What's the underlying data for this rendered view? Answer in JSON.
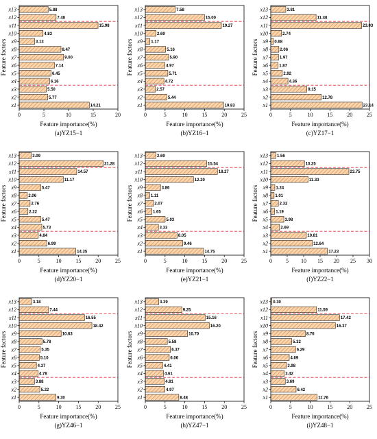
{
  "figure": {
    "colors": {
      "bar_fill": "#f9d6b0",
      "bar_hatch": "#d8823a",
      "bar_edge": "#222222",
      "dash": "#e0323c"
    }
  },
  "chart_data": [
    {
      "type": "bar",
      "orientation": "horizontal",
      "panel": "(a)YZ15−1",
      "xlabel": "Feature importance(%)",
      "ylabel": "Feature factors",
      "xlim": [
        0,
        20
      ],
      "xticks": [
        0,
        5,
        10,
        15,
        20
      ],
      "categories": [
        "x1",
        "x2",
        "x3",
        "x4",
        "x5",
        "x6",
        "x7",
        "x8",
        "x9",
        "x10",
        "x11",
        "x12",
        "x13"
      ],
      "values": [
        14.21,
        5.77,
        5.5,
        6.16,
        6.45,
        7.14,
        9.0,
        8.47,
        3.13,
        4.83,
        15.98,
        7.48,
        5.88
      ],
      "labels": [
        "14.21",
        "5.77",
        "5.50",
        "6.16",
        "6.45",
        "7.14",
        "9.00",
        "8.47",
        "3.13",
        "4.83",
        "15.98",
        "7.48",
        "5.88"
      ],
      "dashed_lines_after": [
        "x3",
        "x11"
      ]
    },
    {
      "type": "bar",
      "orientation": "horizontal",
      "panel": "(b)YZ16−1",
      "xlabel": "Feature importance(%)",
      "ylabel": "Feature factors",
      "xlim": [
        0,
        25
      ],
      "xticks": [
        0,
        5,
        10,
        15,
        20,
        25
      ],
      "categories": [
        "x1",
        "x2",
        "x3",
        "x4",
        "x5",
        "x6",
        "x7",
        "x8",
        "x9",
        "x10",
        "x11",
        "x12",
        "x13"
      ],
      "values": [
        19.83,
        5.44,
        2.57,
        4.72,
        5.71,
        4.97,
        5.9,
        5.16,
        1.17,
        2.69,
        19.27,
        15.0,
        7.58
      ],
      "labels": [
        "19.83",
        "5.44",
        "2.57",
        "4.72",
        "5.71",
        "4.97",
        "5.90",
        "5.16",
        "1.17",
        "2.69",
        "19.27",
        "15.00",
        "7.58"
      ],
      "dashed_lines_after": [
        "x3",
        "x11"
      ]
    },
    {
      "type": "bar",
      "orientation": "horizontal",
      "panel": "(c)YZ17−1",
      "xlabel": "Feature importance(%)",
      "ylabel": "Feature factors",
      "xlim": [
        0,
        25
      ],
      "xticks": [
        0,
        5,
        10,
        15,
        20,
        25
      ],
      "categories": [
        "x1",
        "x2",
        "x3",
        "x4",
        "x5",
        "x6",
        "x7",
        "x8",
        "x9",
        "x10",
        "x11",
        "x12",
        "x13"
      ],
      "values": [
        23.14,
        12.78,
        9.15,
        4.36,
        2.92,
        1.87,
        1.97,
        2.06,
        0.68,
        2.74,
        23.03,
        11.48,
        3.81
      ],
      "labels": [
        "23.14",
        "12.78",
        "9.15",
        "4.36",
        "2.92",
        "1.87",
        "1.97",
        "2.06",
        "0.68",
        "2.74",
        "23.03",
        "11.48",
        "3.81"
      ],
      "dashed_lines_after": [
        "x3",
        "x11"
      ]
    },
    {
      "type": "bar",
      "orientation": "horizontal",
      "panel": "(d)YZ20−1",
      "xlabel": "Feature importance(%)",
      "ylabel": "Feature factors",
      "xlim": [
        0,
        25
      ],
      "xticks": [
        0,
        5,
        10,
        15,
        20,
        25
      ],
      "categories": [
        "x1",
        "x2",
        "x3",
        "x4",
        "x5",
        "x6",
        "x7",
        "x8",
        "x9",
        "x10",
        "x11",
        "x12",
        "x13"
      ],
      "values": [
        14.35,
        6.99,
        4.84,
        5.73,
        5.47,
        2.22,
        2.76,
        2.06,
        5.47,
        11.17,
        14.57,
        21.28,
        3.09
      ],
      "labels": [
        "14.35",
        "6.99",
        "4.84",
        "5.73",
        "5.47",
        "2.22",
        "2.76",
        "2.06",
        "5.47",
        "11.17",
        "14.57",
        "21.28",
        "3.09"
      ],
      "dashed_lines_after": [
        "x3",
        "x11"
      ]
    },
    {
      "type": "bar",
      "orientation": "horizontal",
      "panel": "(e)YZ21−1",
      "xlabel": "Feature importance(%)",
      "ylabel": "Feature factors",
      "xlim": [
        0,
        25
      ],
      "xticks": [
        0,
        5,
        10,
        15,
        20,
        25
      ],
      "categories": [
        "x1",
        "x2",
        "x3",
        "x4",
        "x5",
        "x6",
        "x7",
        "x8",
        "x9",
        "x10",
        "x11",
        "x12",
        "x13"
      ],
      "values": [
        14.75,
        9.46,
        8.05,
        3.33,
        5.03,
        1.65,
        2.07,
        1.11,
        3.86,
        12.2,
        18.27,
        15.54,
        2.69
      ],
      "labels": [
        "14.75",
        "9.46",
        "8.05",
        "3.33",
        "5.03",
        "1.65",
        "2.07",
        "1.11",
        "3.86",
        "12.20",
        "18.27",
        "15.54",
        "2.69"
      ],
      "dashed_lines_after": [
        "x3",
        "x11"
      ]
    },
    {
      "type": "bar",
      "orientation": "horizontal",
      "panel": "(f)YZ22−1",
      "xlabel": "Feature importance(%)",
      "ylabel": "Feature factors",
      "xlim": [
        0,
        30
      ],
      "xticks": [
        0,
        5,
        10,
        15,
        20,
        25,
        30
      ],
      "categories": [
        "x1",
        "x2",
        "x3",
        "x4",
        "x5",
        "x6",
        "x7",
        "x8",
        "x9",
        "x10",
        "x11",
        "x12",
        "x13"
      ],
      "values": [
        17.23,
        12.64,
        10.81,
        2.69,
        3.98,
        1.19,
        2.32,
        1.01,
        1.24,
        11.33,
        23.75,
        10.25,
        1.56
      ],
      "labels": [
        "17.23",
        "12.64",
        "10.81",
        "2.69",
        "3.98",
        "1.19",
        "2.32",
        "1.01",
        "1.24",
        "11.33",
        "23.75",
        "10.25",
        "1.56"
      ],
      "dashed_lines_after": [
        "x3",
        "x11"
      ]
    },
    {
      "type": "bar",
      "orientation": "horizontal",
      "panel": "(g)YZ46−1",
      "xlabel": "Feature importance(%)",
      "ylabel": "Feature factors",
      "xlim": [
        0,
        25
      ],
      "xticks": [
        0,
        5,
        10,
        15,
        20,
        25
      ],
      "categories": [
        "x1",
        "x2",
        "x3",
        "x4",
        "x5",
        "x6",
        "x7",
        "x8",
        "x9",
        "x10",
        "x11",
        "x12",
        "x13"
      ],
      "values": [
        9.3,
        5.22,
        3.88,
        4.78,
        4.37,
        5.1,
        5.35,
        5.78,
        10.63,
        18.42,
        16.55,
        7.44,
        3.18
      ],
      "labels": [
        "9.30",
        "5.22",
        "3.88",
        "4.78",
        "4.37",
        "5.10",
        "5.35",
        "5.78",
        "10.63",
        "18.42",
        "16.55",
        "7.44",
        "3.18"
      ],
      "dashed_lines_after": [
        "x3",
        "x11"
      ]
    },
    {
      "type": "bar",
      "orientation": "horizontal",
      "panel": "(h)YZ47−1",
      "xlabel": "Feature importance(%)",
      "ylabel": "Feature factors",
      "xlim": [
        0,
        25
      ],
      "xticks": [
        0,
        5,
        10,
        15,
        20,
        25
      ],
      "categories": [
        "x1",
        "x2",
        "x3",
        "x4",
        "x5",
        "x6",
        "x7",
        "x8",
        "x9",
        "x10",
        "x11",
        "x12",
        "x13"
      ],
      "values": [
        8.48,
        4.97,
        4.81,
        4.61,
        4.41,
        6.06,
        6.37,
        5.58,
        10.7,
        16.2,
        15.16,
        9.25,
        3.39
      ],
      "labels": [
        "8.48",
        "4.97",
        "4.81",
        "4.61",
        "4.41",
        "6.06",
        "6.37",
        "5.58",
        "10.70",
        "16.20",
        "15.16",
        "9.25",
        "3.39"
      ],
      "dashed_lines_after": [
        "x3",
        "x11"
      ]
    },
    {
      "type": "bar",
      "orientation": "horizontal",
      "panel": "(i)YZ48−1",
      "xlabel": "Feature importance(%)",
      "ylabel": "Feature factors",
      "xlim": [
        0,
        25
      ],
      "xticks": [
        0,
        5,
        10,
        15,
        20,
        25
      ],
      "categories": [
        "x1",
        "x2",
        "x3",
        "x4",
        "x5",
        "x6",
        "x7",
        "x8",
        "x9",
        "x10",
        "x11",
        "x12",
        "x13"
      ],
      "values": [
        11.76,
        6.42,
        3.69,
        3.42,
        3.98,
        4.69,
        6.29,
        5.32,
        8.76,
        16.37,
        17.42,
        11.59,
        0.3
      ],
      "labels": [
        "11.76",
        "6.42",
        "3.69",
        "3.42",
        "3.98",
        "4.69",
        "6.29",
        "5.32",
        "8.76",
        "16.37",
        "17.42",
        "11.59",
        "0.30"
      ],
      "dashed_lines_after": [
        "x3",
        "x11"
      ]
    }
  ]
}
